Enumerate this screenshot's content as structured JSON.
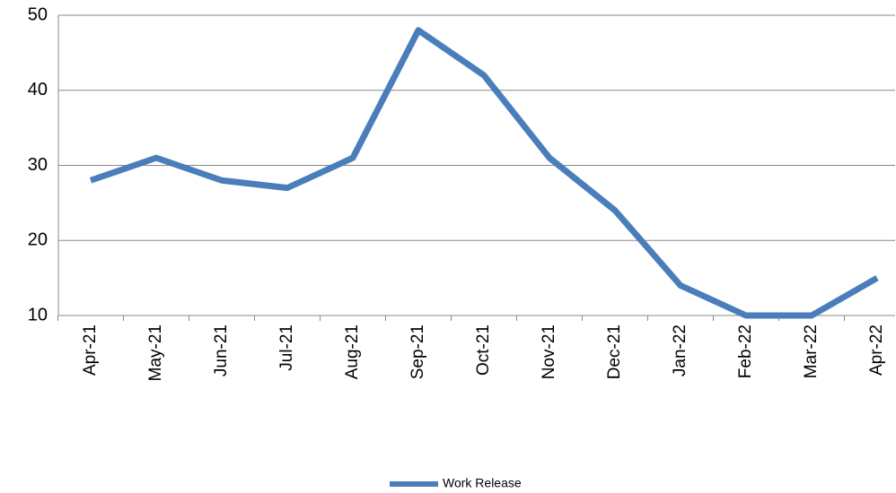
{
  "chart_data": {
    "type": "line",
    "categories": [
      "Apr-21",
      "May-21",
      "Jun-21",
      "Jul-21",
      "Aug-21",
      "Sep-21",
      "Oct-21",
      "Nov-21",
      "Dec-21",
      "Jan-22",
      "Feb-22",
      "Mar-22",
      "Apr-22"
    ],
    "series": [
      {
        "name": "Work Release",
        "color": "#4a7ebb",
        "values": [
          28,
          31,
          28,
          27,
          31,
          48,
          42,
          31,
          24,
          14,
          10,
          10,
          15
        ]
      }
    ],
    "ylim": [
      10,
      50
    ],
    "yticks": [
      10,
      20,
      30,
      40,
      50
    ],
    "grid": true,
    "legend": "bottom"
  }
}
